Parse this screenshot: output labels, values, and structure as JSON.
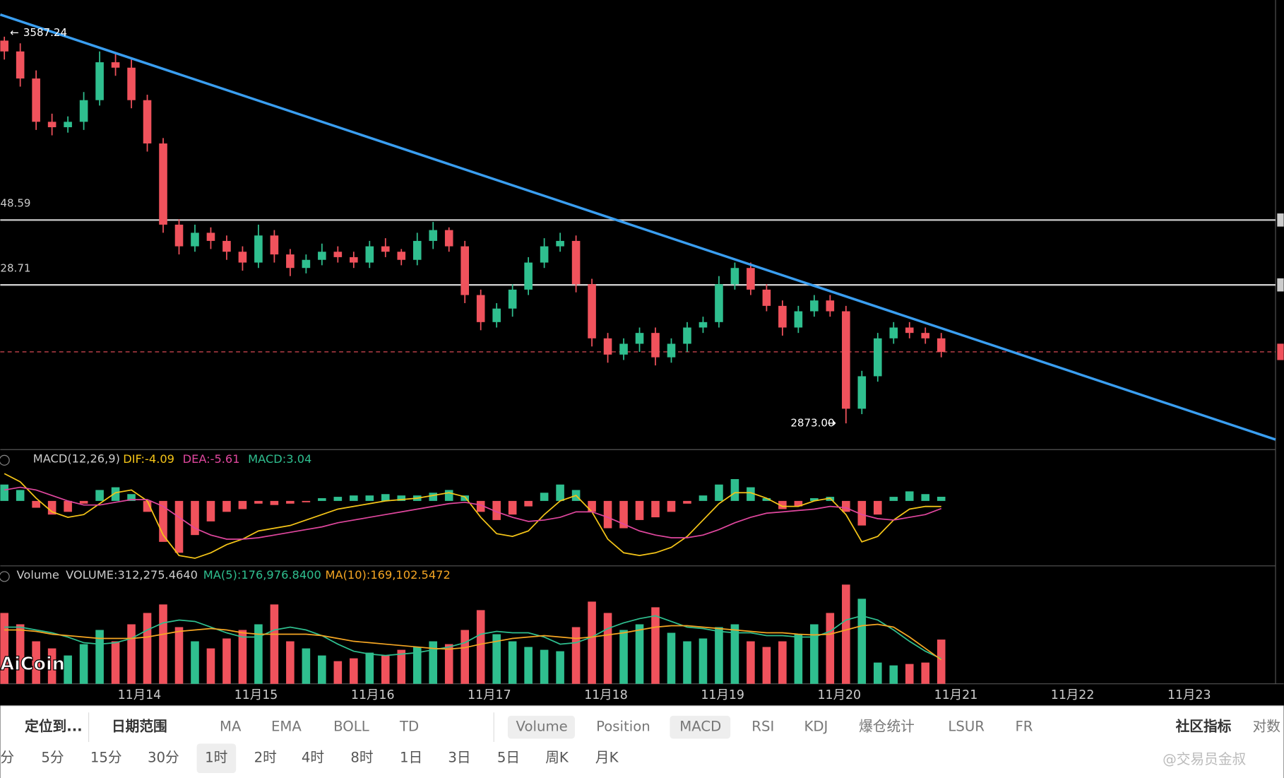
{
  "price_chart": {
    "ylim": [
      2826,
      3655
    ],
    "open": [
      3580,
      3560,
      3510,
      3430,
      3420,
      3430,
      3470,
      3540,
      3530,
      3470,
      3390,
      3240,
      3200,
      3225,
      3210,
      3190,
      3170,
      3220,
      3185,
      3160,
      3175,
      3190,
      3180,
      3170,
      3200,
      3190,
      3175,
      3210,
      3230,
      3200,
      3110,
      3060,
      3085,
      3120,
      3170,
      3200,
      3210,
      3130,
      3030,
      3000,
      3020,
      3040,
      2995,
      3020,
      3050,
      3060,
      3130,
      3160,
      3120,
      3090,
      3050,
      3080,
      3100,
      3080,
      2900,
      2960,
      3030,
      3050,
      3040,
      3030
    ],
    "high": [
      3587.24,
      3575,
      3525,
      3445,
      3440,
      3485,
      3560,
      3555,
      3545,
      3480,
      3400,
      3250,
      3240,
      3235,
      3220,
      3200,
      3240,
      3230,
      3195,
      3185,
      3205,
      3200,
      3190,
      3210,
      3215,
      3195,
      3225,
      3245,
      3235,
      3210,
      3120,
      3095,
      3130,
      3180,
      3215,
      3225,
      3220,
      3140,
      3040,
      3030,
      3050,
      3050,
      3030,
      3060,
      3070,
      3145,
      3170,
      3170,
      3130,
      3100,
      3090,
      3110,
      3110,
      3090,
      2970,
      3040,
      3060,
      3060,
      3050,
      3040
    ],
    "low": [
      3545,
      3495,
      3415,
      3405,
      3410,
      3415,
      3460,
      3515,
      3455,
      3375,
      3225,
      3185,
      3190,
      3195,
      3175,
      3155,
      3160,
      3170,
      3145,
      3150,
      3165,
      3170,
      3160,
      3160,
      3180,
      3165,
      3165,
      3195,
      3190,
      3095,
      3045,
      3050,
      3070,
      3110,
      3160,
      3190,
      3115,
      3015,
      2985,
      2990,
      3005,
      2980,
      2985,
      3005,
      3040,
      3050,
      3120,
      3110,
      3080,
      3035,
      3040,
      3070,
      3070,
      2873,
      2890,
      2950,
      3020,
      3030,
      3020,
      2995
    ],
    "close": [
      3560,
      3510,
      3430,
      3420,
      3430,
      3470,
      3540,
      3530,
      3470,
      3390,
      3240,
      3200,
      3225,
      3210,
      3190,
      3170,
      3220,
      3185,
      3160,
      3175,
      3190,
      3180,
      3170,
      3200,
      3190,
      3175,
      3210,
      3230,
      3200,
      3110,
      3060,
      3085,
      3120,
      3170,
      3200,
      3210,
      3130,
      3030,
      3000,
      3020,
      3040,
      2995,
      3020,
      3050,
      3060,
      3130,
      3160,
      3120,
      3090,
      3050,
      3080,
      3100,
      3080,
      2900,
      2960,
      3030,
      3050,
      3040,
      3030,
      3005
    ],
    "high_marker": 3587.24,
    "low_marker": {
      "value": 2873,
      "label": "2873.00"
    },
    "levels": [
      {
        "value": 3248.59,
        "label": "48.59"
      },
      {
        "value": 3128.71,
        "label": "28.71"
      }
    ],
    "trendline": [
      3628,
      2843
    ],
    "last_price": 3005
  },
  "macd_panel": {
    "title": "MACD(12,26,9)",
    "dif_label": "DIF:",
    "dif": -4.09,
    "dea_label": "DEA:",
    "dea": -5.61,
    "macd_label": "MACD:",
    "macd": 3.04,
    "ylim": [
      -47,
      31
    ],
    "histogram": [
      12,
      8,
      -5,
      -10,
      -8,
      -2,
      8,
      10,
      5,
      -8,
      -30,
      -38,
      -25,
      -15,
      -8,
      -6,
      -2,
      -3,
      -2,
      -1,
      2,
      3,
      4,
      4,
      5,
      4,
      4,
      6,
      8,
      4,
      -8,
      -14,
      -10,
      -4,
      6,
      12,
      8,
      -8,
      -20,
      -20,
      -14,
      -12,
      -8,
      -2,
      4,
      12,
      16,
      10,
      2,
      -6,
      -4,
      2,
      3,
      -8,
      -18,
      -10,
      3,
      7,
      5,
      3.04
    ],
    "dif_line": [
      20,
      14,
      2,
      -8,
      -12,
      -10,
      -2,
      6,
      8,
      0,
      -25,
      -40,
      -42,
      -38,
      -32,
      -28,
      -22,
      -20,
      -18,
      -14,
      -10,
      -6,
      -4,
      -2,
      0,
      1,
      2,
      4,
      6,
      3,
      -12,
      -24,
      -26,
      -22,
      -10,
      0,
      4,
      -8,
      -28,
      -38,
      -40,
      -38,
      -34,
      -26,
      -14,
      -2,
      6,
      6,
      2,
      -4,
      -4,
      0,
      2,
      -10,
      -30,
      -26,
      -14,
      -6,
      -4,
      -4.09
    ],
    "dea_line": [
      8,
      10,
      8,
      4,
      0,
      -3,
      -3,
      -1,
      1,
      1,
      -4,
      -12,
      -20,
      -25,
      -28,
      -28,
      -27,
      -25,
      -23,
      -21,
      -19,
      -16,
      -14,
      -12,
      -10,
      -8,
      -6,
      -4,
      -2,
      -1,
      -3,
      -8,
      -12,
      -15,
      -14,
      -12,
      -8,
      -8,
      -12,
      -17,
      -22,
      -25,
      -27,
      -27,
      -25,
      -21,
      -16,
      -12,
      -9,
      -8,
      -7,
      -6,
      -4,
      -5,
      -10,
      -13,
      -14,
      -12,
      -10,
      -5.61
    ]
  },
  "volume_panel": {
    "title": "Volume",
    "volume": {
      "value": 312275.464,
      "label": "VOLUME:312,275.4640"
    },
    "ma5": {
      "value": 176976.84,
      "label": "MA(5):176,976.8400"
    },
    "ma10": {
      "value": 169102.5472,
      "label": "MA(10):169,102.5472"
    },
    "ylim": [
      0,
      780000
    ],
    "volumes": [
      500000,
      420000,
      300000,
      250000,
      200000,
      280000,
      380000,
      300000,
      420000,
      500000,
      560000,
      400000,
      300000,
      250000,
      320000,
      380000,
      420000,
      560000,
      300000,
      250000,
      200000,
      160000,
      180000,
      220000,
      200000,
      240000,
      260000,
      300000,
      280000,
      380000,
      520000,
      350000,
      300000,
      260000,
      240000,
      230000,
      400000,
      580000,
      500000,
      380000,
      420000,
      540000,
      360000,
      300000,
      320000,
      400000,
      420000,
      300000,
      260000,
      300000,
      350000,
      420000,
      500000,
      700000,
      600000,
      150000,
      130000,
      140000,
      150000,
      312275.464
    ],
    "ma5_line": [
      400000,
      400000,
      380000,
      360000,
      330000,
      290000,
      280000,
      290000,
      320000,
      380000,
      430000,
      450000,
      440000,
      400000,
      360000,
      330000,
      330000,
      380000,
      400000,
      380000,
      340000,
      280000,
      230000,
      210000,
      200000,
      210000,
      220000,
      240000,
      260000,
      290000,
      350000,
      370000,
      360000,
      360000,
      330000,
      280000,
      290000,
      330000,
      390000,
      430000,
      460000,
      480000,
      440000,
      400000,
      390000,
      370000,
      360000,
      360000,
      340000,
      340000,
      330000,
      330000,
      370000,
      450000,
      480000,
      450000,
      380000,
      300000,
      230000,
      176976.84
    ],
    "ma10_line": [
      380000,
      380000,
      370000,
      350000,
      340000,
      330000,
      320000,
      320000,
      320000,
      330000,
      350000,
      370000,
      380000,
      390000,
      380000,
      360000,
      350000,
      350000,
      350000,
      350000,
      340000,
      320000,
      300000,
      290000,
      280000,
      270000,
      260000,
      250000,
      245000,
      255000,
      280000,
      300000,
      320000,
      330000,
      340000,
      330000,
      320000,
      330000,
      345000,
      360000,
      380000,
      400000,
      410000,
      410000,
      400000,
      390000,
      380000,
      370000,
      360000,
      360000,
      350000,
      345000,
      350000,
      380000,
      410000,
      420000,
      400000,
      330000,
      250000,
      169102.5472
    ]
  },
  "x_axis": {
    "labels": [
      "11月14",
      "11月15",
      "11月16",
      "11月17",
      "11月18",
      "11月19",
      "11月20",
      "11月21",
      "11月22",
      "11月23"
    ]
  },
  "toolbar": {
    "row1": [
      "定位到...",
      "日期范围",
      "MA",
      "EMA",
      "BOLL",
      "TD",
      "Volume",
      "Position",
      "MACD",
      "RSI",
      "KDJ",
      "爆仓统计",
      "LSUR",
      "FR",
      "社区指标",
      "对数"
    ],
    "row2": [
      "分",
      "5分",
      "15分",
      "30分",
      "1时",
      "2时",
      "4时",
      "8时",
      "1日",
      "3日",
      "5日",
      "周K",
      "月K"
    ]
  },
  "watermark": "@交易员金叔",
  "logo": "AiCoin"
}
